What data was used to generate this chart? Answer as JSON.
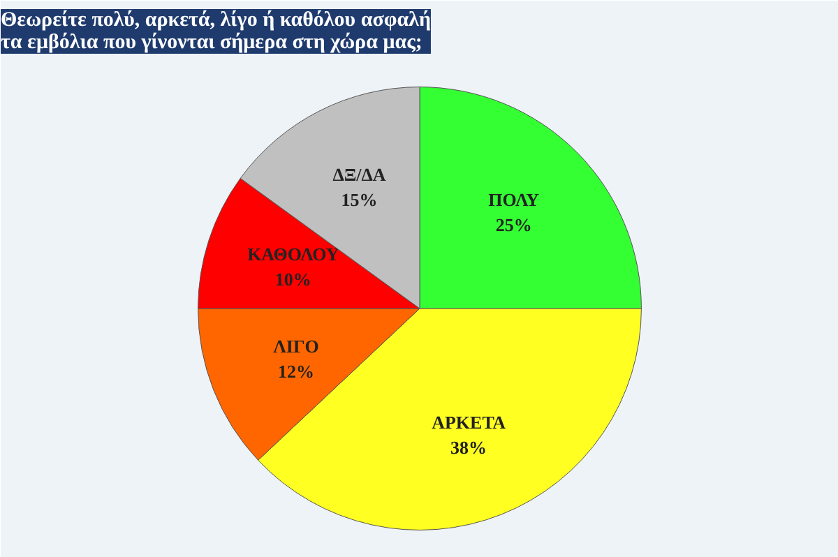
{
  "chart_data": {
    "type": "pie",
    "title": "Θεωρείτε πολύ, αρκετά, λίγο ή καθόλου ασφαλή\nτα εμβόλια που γίνονται σήμερα στη χώρα  μας;",
    "categories": [
      "ΠΟΛΥ",
      "ΑΡΚΕΤΑ",
      "ΛΙΓΟ",
      "ΚΑΘΟΛΟΥ",
      "ΔΞ/ΔΑ"
    ],
    "values": [
      25,
      38,
      12,
      10,
      15
    ],
    "value_labels": [
      "25%",
      "38%",
      "12%",
      "10%",
      "15%"
    ],
    "colors": [
      "#33ff33",
      "#ffff22",
      "#ff6600",
      "#ff0000",
      "#c0c0c0"
    ]
  }
}
